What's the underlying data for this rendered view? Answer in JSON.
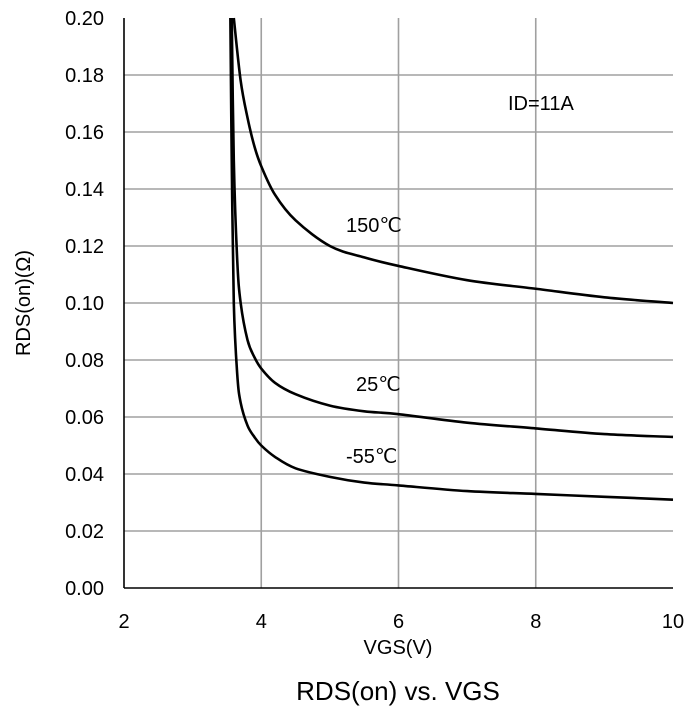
{
  "chart_data": {
    "type": "line",
    "title": "RDS(on) vs. VGS",
    "xlabel": "VGS(V)",
    "ylabel": "RDS(on)(Ω)",
    "xlim": [
      2,
      10
    ],
    "ylim": [
      0,
      0.2
    ],
    "xticks": [
      "2",
      "4",
      "6",
      "8",
      "10"
    ],
    "yticks": [
      "0.00",
      "0.02",
      "0.04",
      "0.06",
      "0.08",
      "0.10",
      "0.12",
      "0.14",
      "0.16",
      "0.18",
      "0.20"
    ],
    "grid": true,
    "annotations": [
      "ID=11A"
    ],
    "series": [
      {
        "name": "150℃",
        "x": [
          3.6,
          3.7,
          3.8,
          3.9,
          4.0,
          4.2,
          4.5,
          5.0,
          5.5,
          6.0,
          7.0,
          8.0,
          9.0,
          10.0
        ],
        "y": [
          0.2,
          0.178,
          0.165,
          0.155,
          0.148,
          0.138,
          0.129,
          0.12,
          0.116,
          0.113,
          0.108,
          0.105,
          0.102,
          0.1
        ]
      },
      {
        "name": "25℃",
        "x": [
          3.57,
          3.6,
          3.65,
          3.7,
          3.8,
          3.9,
          4.0,
          4.2,
          4.5,
          5.0,
          5.5,
          6.0,
          7.0,
          8.0,
          9.0,
          10.0
        ],
        "y": [
          0.2,
          0.15,
          0.115,
          0.1,
          0.087,
          0.081,
          0.077,
          0.072,
          0.068,
          0.064,
          0.062,
          0.061,
          0.058,
          0.056,
          0.054,
          0.053
        ]
      },
      {
        "name": "-55℃",
        "x": [
          3.55,
          3.57,
          3.6,
          3.65,
          3.7,
          3.8,
          3.9,
          4.0,
          4.2,
          4.5,
          5.0,
          5.5,
          6.0,
          7.0,
          8.0,
          9.0,
          10.0
        ],
        "y": [
          0.2,
          0.15,
          0.1,
          0.075,
          0.065,
          0.057,
          0.053,
          0.05,
          0.046,
          0.042,
          0.039,
          0.037,
          0.036,
          0.034,
          0.033,
          0.032,
          0.031
        ]
      }
    ]
  }
}
